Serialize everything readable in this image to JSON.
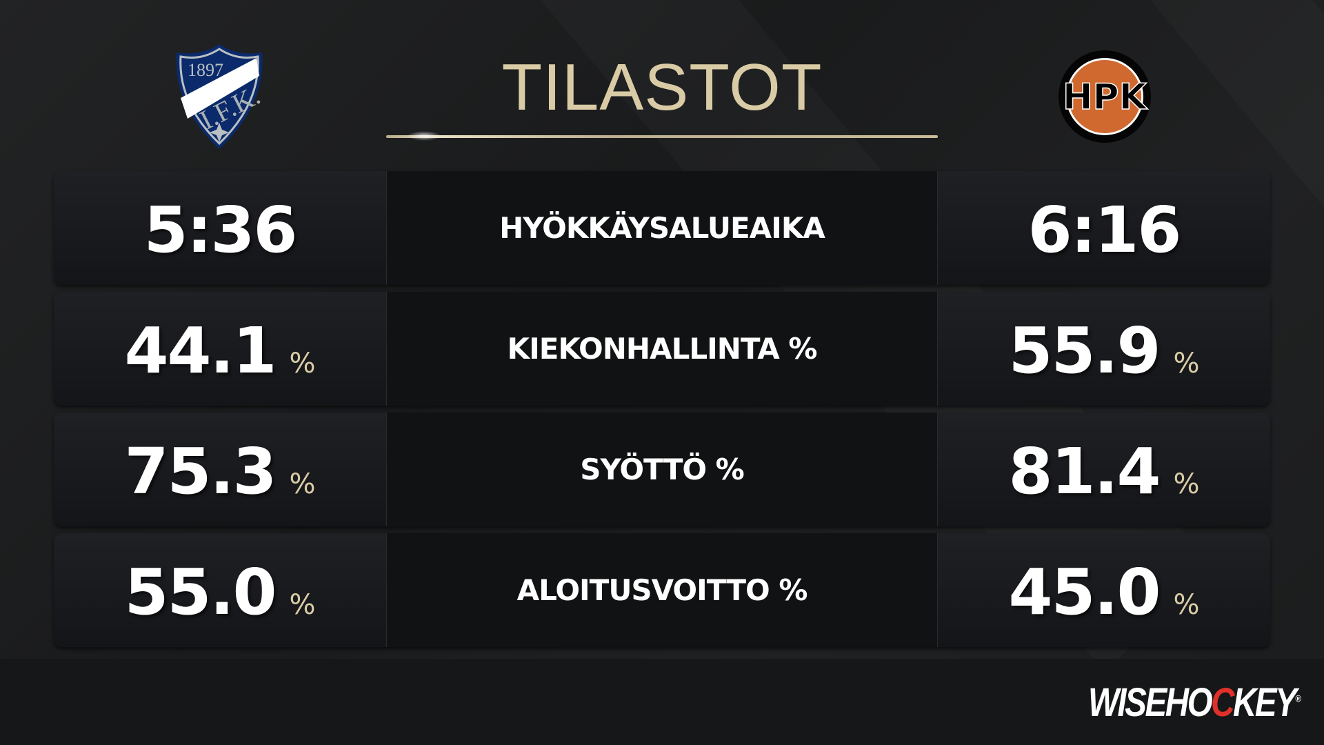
{
  "title": "TILASTOT",
  "home_team": {
    "logo_year": "1897",
    "logo_text": "I.F.K.",
    "logo_colors": {
      "primary": "#0b2a6b",
      "secondary": "#b9c0c4"
    }
  },
  "away_team": {
    "logo_text": "HPK",
    "logo_colors": {
      "primary": "#d0692f",
      "secondary": "#000000"
    }
  },
  "stats": [
    {
      "label": "HYÖKKÄYSALUEAIKA",
      "home": "5:36",
      "away": "6:16",
      "unit": ""
    },
    {
      "label": "KIEKONHALLINTA %",
      "home": "44.1",
      "away": "55.9",
      "unit": "%"
    },
    {
      "label": "SYÖTTÖ %",
      "home": "75.3",
      "away": "81.4",
      "unit": "%"
    },
    {
      "label": "ALOITUSVOITTO %",
      "home": "55.0",
      "away": "45.0",
      "unit": "%"
    }
  ],
  "brand": {
    "pre": "WISEHO",
    "accent": "C",
    "post": "KEY",
    "reg": "®",
    "accent_color": "#e0302a"
  },
  "colors": {
    "accent": "#d9cba5"
  }
}
